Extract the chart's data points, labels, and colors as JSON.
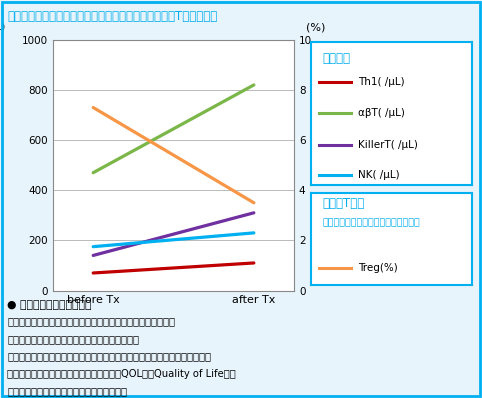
{
  "title": "治療前後で免疫細胞（血中リンパ球）は増加、制御性T細胞は減少",
  "x_labels": [
    "before Tx",
    "after Tx"
  ],
  "lines": {
    "Th1": {
      "before": 70,
      "after": 110,
      "color": "#c00000",
      "label": "Th1( /μL)"
    },
    "abT": {
      "before": 470,
      "after": 820,
      "color": "#7ab648",
      "label": "αβT( /μL)"
    },
    "KillerT": {
      "before": 140,
      "after": 310,
      "color": "#7030a0",
      "label": "KillerT( /μL)"
    },
    "NK": {
      "before": 175,
      "after": 230,
      "color": "#00b0f0",
      "label": "NK( /μL)"
    },
    "Treg": {
      "before": 7.3,
      "after": 3.5,
      "color": "#f79646",
      "label": "Treg(%)"
    }
  },
  "ylim_left": [
    0,
    1000
  ],
  "ylim_right": [
    0,
    10
  ],
  "yticks_left": [
    0,
    200,
    400,
    600,
    800,
    1000
  ],
  "yticks_right": [
    0,
    2,
    4,
    6,
    8,
    10
  ],
  "ylabel_left": "( /μL)",
  "ylabel_right": "(%)",
  "bg_color": "#e8f4fb",
  "outer_border_color": "#00b0f0",
  "legend_title1": "免疫細胞",
  "legend_title2": "制御性T細胞",
  "legend_title2b": "（免疫反応を弱める働きをする細胞）",
  "bullet_text": "● リスク・副作用について",
  "body_lines": [
    "免疫細胞治療は患者さん自身の免疫細胞を治療に用いるので、",
    "軽い発熱、発疹等が見られる場合がありますが、",
    "それ以外は重筄な副作用は見られず、軽体への負担がほとんどありません。",
    "副作用が少ないため、生活の質、いわゆるQOL（＝Quality of Life）を",
    "維持しながら治療を続けることも可能です。"
  ],
  "grid_color": "#b0b0b0",
  "axis_color": "#888888"
}
